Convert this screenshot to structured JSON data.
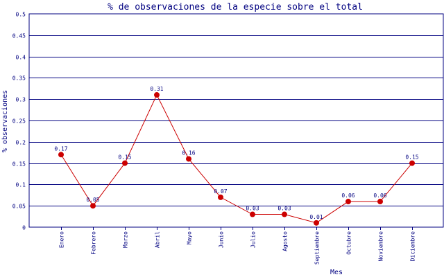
{
  "chart_data": {
    "type": "line",
    "title": "% de observaciones de la especie sobre el total",
    "xlabel": "Mes",
    "ylabel": "% observaciones",
    "categories": [
      "Enero",
      "Febrero",
      "Marzo",
      "Abril",
      "Mayo",
      "Junio",
      "Julio",
      "Agosto",
      "Septiembre",
      "Octubre",
      "Noviembre",
      "Diciembre"
    ],
    "values": [
      0.17,
      0.05,
      0.15,
      0.31,
      0.16,
      0.07,
      0.03,
      0.03,
      0.01,
      0.06,
      0.06,
      0.15
    ],
    "data_labels": [
      "0.17",
      "0.05",
      "0.15",
      "0.31",
      "0.16",
      "0.07",
      "0.03",
      "0.03",
      "0.01",
      "0.06",
      "0.06",
      "0.15"
    ],
    "ylim": [
      0,
      0.5
    ],
    "yticks": [
      0,
      0.05,
      0.1,
      0.15,
      0.2,
      0.25,
      0.3,
      0.35,
      0.4,
      0.45,
      0.5
    ],
    "ytick_labels": [
      "0",
      "0.05",
      "0.1",
      "0.15",
      "0.2",
      "0.25",
      "0.3",
      "0.35",
      "0.4",
      "0.45",
      "0.5"
    ],
    "grid": true,
    "colors": {
      "line": "#cc0000",
      "marker": "#cc0000",
      "text": "#000080",
      "grid": "#000080"
    }
  }
}
